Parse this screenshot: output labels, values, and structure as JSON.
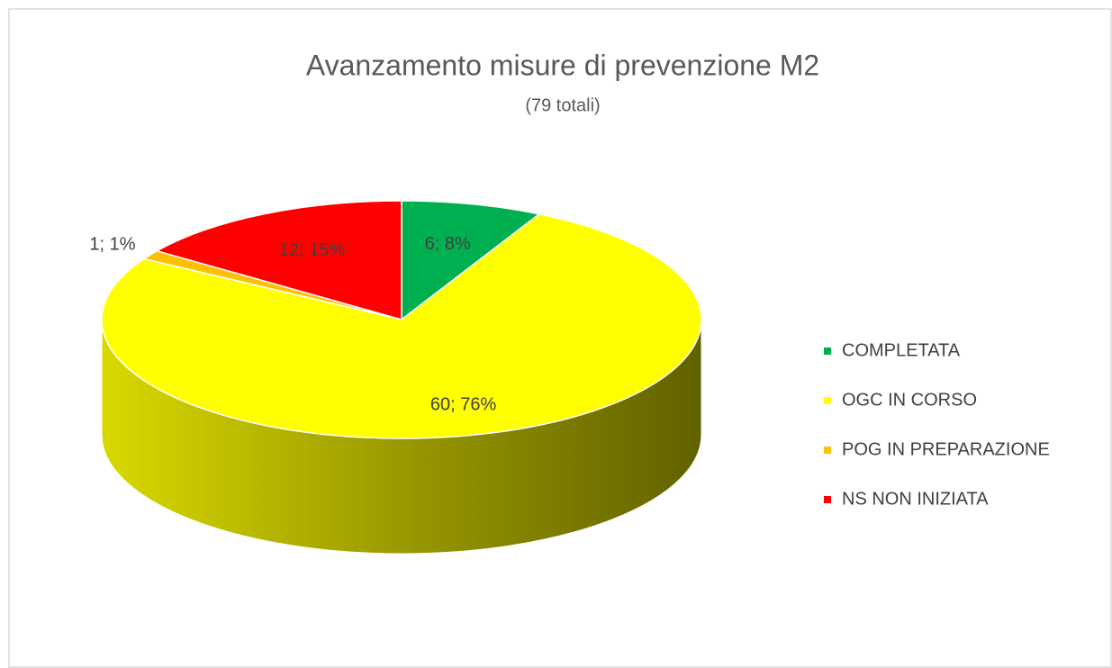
{
  "chart_data": {
    "type": "pie",
    "title": "Avanzamento misure di prevenzione M2",
    "subtitle": "(79 totali)",
    "categories": [
      "COMPLETATA",
      "OGC IN CORSO",
      "POG IN PREPARAZIONE",
      "NS NON INIZIATA"
    ],
    "values": [
      6,
      60,
      1,
      12
    ],
    "value_labels": [
      "6; 8%",
      "60; 76%",
      "1; 1%",
      "12; 15%"
    ],
    "colors": [
      "#00b050",
      "#ffff00",
      "#ffc000",
      "#ff0000"
    ],
    "legend": "right"
  }
}
